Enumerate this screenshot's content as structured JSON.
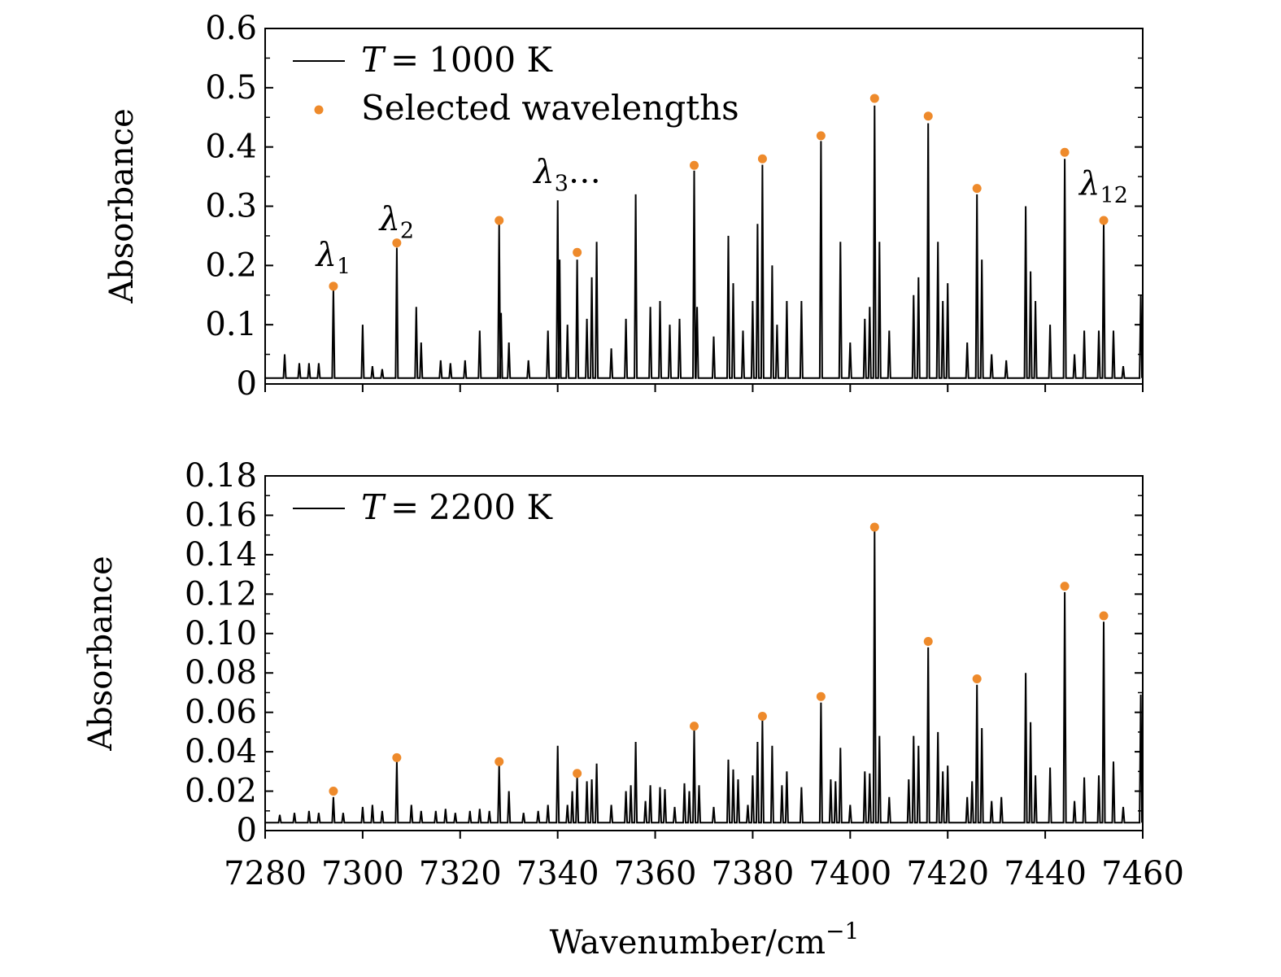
{
  "colors": {
    "line": "#000000",
    "marker": "#ee8a2b"
  },
  "chart_data": [
    {
      "type": "line",
      "xlim": [
        7280,
        7460
      ],
      "ylim": [
        0,
        0.6
      ],
      "xticks": [
        "7280",
        "7300",
        "7320",
        "7340",
        "7360",
        "7380",
        "7400",
        "7420",
        "7440",
        "7460"
      ],
      "yticks": [
        "0",
        "0.1",
        "0.2",
        "0.3",
        "0.4",
        "0.5",
        "0.6"
      ],
      "ytick_values": [
        0,
        0.1,
        0.2,
        0.3,
        0.4,
        0.5,
        0.6
      ],
      "ylabel": "Absorbance",
      "xlabel": "",
      "legend": {
        "placement": "top-left",
        "line_label": "1000 K",
        "line_var": "T",
        "line_eq": "=",
        "marker_label": "Selected wavelengths"
      },
      "annotations": [
        {
          "base": "λ",
          "sub": "1",
          "suffix": "",
          "x": 7294,
          "y": 0.2
        },
        {
          "base": "λ",
          "sub": "2",
          "suffix": "",
          "x": 7307,
          "y": 0.26
        },
        {
          "base": "λ",
          "sub": "3",
          "suffix": "…",
          "x": 7342,
          "y": 0.34
        },
        {
          "base": "λ",
          "sub": "12",
          "suffix": "",
          "x": 7452,
          "y": 0.32
        }
      ],
      "series": [
        {
          "type": "peaks",
          "baseline": 0.01,
          "peaks": [
            [
              7284,
              0.05
            ],
            [
              7287,
              0.035
            ],
            [
              7289,
              0.035
            ],
            [
              7291,
              0.035
            ],
            [
              7294,
              0.16
            ],
            [
              7300,
              0.1
            ],
            [
              7302,
              0.03
            ],
            [
              7304,
              0.025
            ],
            [
              7307,
              0.23
            ],
            [
              7311,
              0.13
            ],
            [
              7312,
              0.07
            ],
            [
              7316,
              0.04
            ],
            [
              7318,
              0.035
            ],
            [
              7321,
              0.04
            ],
            [
              7324,
              0.09
            ],
            [
              7328,
              0.27
            ],
            [
              7328.4,
              0.12
            ],
            [
              7330,
              0.07
            ],
            [
              7334,
              0.04
            ],
            [
              7338,
              0.09
            ],
            [
              7340,
              0.31
            ],
            [
              7340.4,
              0.21
            ],
            [
              7342,
              0.1
            ],
            [
              7344,
              0.21
            ],
            [
              7346,
              0.11
            ],
            [
              7347,
              0.18
            ],
            [
              7348,
              0.24
            ],
            [
              7351,
              0.06
            ],
            [
              7354,
              0.11
            ],
            [
              7356,
              0.32
            ],
            [
              7359,
              0.13
            ],
            [
              7361,
              0.14
            ],
            [
              7363,
              0.1
            ],
            [
              7365,
              0.11
            ],
            [
              7368,
              0.36
            ],
            [
              7368.6,
              0.13
            ],
            [
              7372,
              0.08
            ],
            [
              7375,
              0.25
            ],
            [
              7376,
              0.17
            ],
            [
              7378,
              0.09
            ],
            [
              7380,
              0.14
            ],
            [
              7381,
              0.27
            ],
            [
              7382,
              0.37
            ],
            [
              7384,
              0.2
            ],
            [
              7385,
              0.1
            ],
            [
              7387,
              0.14
            ],
            [
              7390,
              0.14
            ],
            [
              7394,
              0.41
            ],
            [
              7398,
              0.24
            ],
            [
              7400,
              0.07
            ],
            [
              7403,
              0.11
            ],
            [
              7404,
              0.13
            ],
            [
              7405,
              0.47
            ],
            [
              7406,
              0.24
            ],
            [
              7408,
              0.09
            ],
            [
              7413,
              0.15
            ],
            [
              7414,
              0.18
            ],
            [
              7416,
              0.44
            ],
            [
              7418,
              0.24
            ],
            [
              7419,
              0.14
            ],
            [
              7420,
              0.17
            ],
            [
              7424,
              0.07
            ],
            [
              7426,
              0.32
            ],
            [
              7427,
              0.21
            ],
            [
              7429,
              0.05
            ],
            [
              7432,
              0.04
            ],
            [
              7436,
              0.3
            ],
            [
              7437,
              0.19
            ],
            [
              7438,
              0.14
            ],
            [
              7441,
              0.1
            ],
            [
              7444,
              0.38
            ],
            [
              7446,
              0.05
            ],
            [
              7448,
              0.09
            ],
            [
              7451,
              0.09
            ],
            [
              7452,
              0.27
            ],
            [
              7454,
              0.09
            ],
            [
              7456,
              0.03
            ],
            [
              7459.6,
              0.15
            ]
          ]
        },
        {
          "type": "scatter",
          "name": "Selected wavelengths",
          "points": [
            [
              7294,
              0.165
            ],
            [
              7307,
              0.238
            ],
            [
              7328,
              0.276
            ],
            [
              7344,
              0.222
            ],
            [
              7368,
              0.369
            ],
            [
              7382,
              0.38
            ],
            [
              7394,
              0.419
            ],
            [
              7405,
              0.482
            ],
            [
              7416,
              0.452
            ],
            [
              7426,
              0.33
            ],
            [
              7444,
              0.391
            ],
            [
              7452,
              0.276
            ]
          ]
        }
      ]
    },
    {
      "type": "line",
      "xlim": [
        7280,
        7460
      ],
      "ylim": [
        0,
        0.18
      ],
      "xticks": [
        "7280",
        "7300",
        "7320",
        "7340",
        "7360",
        "7380",
        "7400",
        "7420",
        "7440",
        "7460"
      ],
      "yticks": [
        "0",
        "0.02",
        "0.04",
        "0.06",
        "0.08",
        "0.10",
        "0.12",
        "0.14",
        "0.16",
        "0.18"
      ],
      "ytick_values": [
        0,
        0.02,
        0.04,
        0.06,
        0.08,
        0.1,
        0.12,
        0.14,
        0.16,
        0.18
      ],
      "ylabel": "Absorbance",
      "xlabel": "Wavenumber/cm",
      "xlabel_sup": "−1",
      "legend": {
        "placement": "top-left",
        "line_label": "2200 K",
        "line_var": "T",
        "line_eq": "="
      },
      "annotations": [],
      "series": [
        {
          "type": "peaks",
          "baseline": 0.004,
          "peaks": [
            [
              7283,
              0.008
            ],
            [
              7286,
              0.009
            ],
            [
              7289,
              0.01
            ],
            [
              7291,
              0.009
            ],
            [
              7294,
              0.017
            ],
            [
              7296,
              0.009
            ],
            [
              7300,
              0.012
            ],
            [
              7302,
              0.013
            ],
            [
              7304,
              0.01
            ],
            [
              7307,
              0.035
            ],
            [
              7310,
              0.013
            ],
            [
              7312,
              0.01
            ],
            [
              7315,
              0.01
            ],
            [
              7317,
              0.011
            ],
            [
              7319,
              0.009
            ],
            [
              7322,
              0.01
            ],
            [
              7324,
              0.011
            ],
            [
              7326,
              0.01
            ],
            [
              7328,
              0.033
            ],
            [
              7330,
              0.02
            ],
            [
              7333,
              0.009
            ],
            [
              7336,
              0.01
            ],
            [
              7338,
              0.013
            ],
            [
              7340,
              0.043
            ],
            [
              7342,
              0.013
            ],
            [
              7343,
              0.02
            ],
            [
              7344,
              0.027
            ],
            [
              7346,
              0.025
            ],
            [
              7347,
              0.026
            ],
            [
              7348,
              0.034
            ],
            [
              7351,
              0.013
            ],
            [
              7354,
              0.02
            ],
            [
              7355,
              0.023
            ],
            [
              7356,
              0.045
            ],
            [
              7358,
              0.015
            ],
            [
              7359,
              0.023
            ],
            [
              7361,
              0.022
            ],
            [
              7362,
              0.021
            ],
            [
              7364,
              0.012
            ],
            [
              7366,
              0.024
            ],
            [
              7367,
              0.02
            ],
            [
              7368,
              0.051
            ],
            [
              7369,
              0.023
            ],
            [
              7372,
              0.012
            ],
            [
              7375,
              0.036
            ],
            [
              7376,
              0.031
            ],
            [
              7377,
              0.026
            ],
            [
              7379,
              0.013
            ],
            [
              7380,
              0.028
            ],
            [
              7381,
              0.045
            ],
            [
              7382,
              0.056
            ],
            [
              7384,
              0.043
            ],
            [
              7386,
              0.023
            ],
            [
              7387,
              0.03
            ],
            [
              7390,
              0.022
            ],
            [
              7394,
              0.065
            ],
            [
              7396,
              0.026
            ],
            [
              7397,
              0.025
            ],
            [
              7398,
              0.042
            ],
            [
              7400,
              0.013
            ],
            [
              7403,
              0.03
            ],
            [
              7404,
              0.029
            ],
            [
              7405,
              0.152
            ],
            [
              7406,
              0.048
            ],
            [
              7408,
              0.017
            ],
            [
              7412,
              0.026
            ],
            [
              7413,
              0.048
            ],
            [
              7414,
              0.043
            ],
            [
              7416,
              0.093
            ],
            [
              7418,
              0.05
            ],
            [
              7419,
              0.03
            ],
            [
              7420,
              0.033
            ],
            [
              7424,
              0.017
            ],
            [
              7425,
              0.025
            ],
            [
              7426,
              0.074
            ],
            [
              7427,
              0.052
            ],
            [
              7429,
              0.015
            ],
            [
              7431,
              0.017
            ],
            [
              7436,
              0.08
            ],
            [
              7437,
              0.055
            ],
            [
              7438,
              0.028
            ],
            [
              7441,
              0.032
            ],
            [
              7444,
              0.121
            ],
            [
              7446,
              0.015
            ],
            [
              7448,
              0.027
            ],
            [
              7451,
              0.028
            ],
            [
              7452,
              0.106
            ],
            [
              7454,
              0.035
            ],
            [
              7456,
              0.012
            ],
            [
              7459.6,
              0.069
            ]
          ]
        },
        {
          "type": "scatter",
          "name": "Selected wavelengths",
          "points": [
            [
              7294,
              0.02
            ],
            [
              7307,
              0.037
            ],
            [
              7328,
              0.035
            ],
            [
              7344,
              0.029
            ],
            [
              7368,
              0.053
            ],
            [
              7382,
              0.058
            ],
            [
              7394,
              0.068
            ],
            [
              7405,
              0.154
            ],
            [
              7416,
              0.096
            ],
            [
              7426,
              0.077
            ],
            [
              7444,
              0.124
            ],
            [
              7452,
              0.109
            ]
          ]
        }
      ]
    }
  ]
}
